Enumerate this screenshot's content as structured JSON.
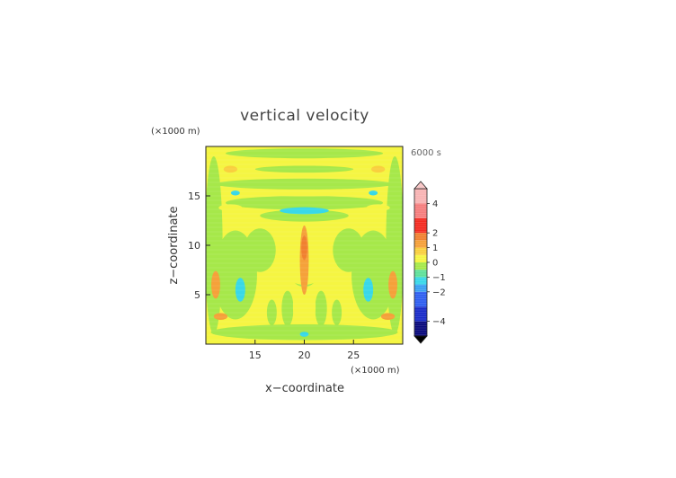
{
  "chart_data": {
    "type": "heatmap",
    "title": "vertical velocity",
    "xlabel": "x−coordinate",
    "ylabel": "z−coordinate",
    "x_unit": "(×1000 m)",
    "y_unit": "(×1000 m)",
    "time_label": "6000 s",
    "xlim": [
      10,
      30
    ],
    "ylim": [
      0,
      20
    ],
    "x_ticks": [
      15,
      20,
      25
    ],
    "y_ticks": [
      5,
      10,
      15
    ],
    "colorbar": {
      "range": [
        -5,
        5
      ],
      "tick_values": [
        4,
        2,
        1,
        0,
        -1,
        -2,
        -4
      ],
      "tick_labels": [
        "4",
        "2",
        "1",
        "0",
        "−1",
        "−2",
        "−4"
      ],
      "levels": [
        {
          "from": -5,
          "to": -4,
          "color": "#0a0a7c"
        },
        {
          "from": -4,
          "to": -3,
          "color": "#1a2cc8"
        },
        {
          "from": -3,
          "to": -2,
          "color": "#2f5ff0"
        },
        {
          "from": -2,
          "to": -1.5,
          "color": "#3aa0f2"
        },
        {
          "from": -1.5,
          "to": -1,
          "color": "#38d8e8"
        },
        {
          "from": -1,
          "to": -0.5,
          "color": "#5fe09a"
        },
        {
          "from": -0.5,
          "to": 0,
          "color": "#a6e84a"
        },
        {
          "from": 0,
          "to": 0.5,
          "color": "#f5f542"
        },
        {
          "from": 0.5,
          "to": 1,
          "color": "#f9cf3e"
        },
        {
          "from": 1,
          "to": 1.5,
          "color": "#f5a13a"
        },
        {
          "from": 1.5,
          "to": 2,
          "color": "#f08030"
        },
        {
          "from": 2,
          "to": 3,
          "color": "#f42c22"
        },
        {
          "from": 3,
          "to": 4,
          "color": "#f57e7e"
        },
        {
          "from": 4,
          "to": 5,
          "color": "#f8b4b4"
        }
      ],
      "over_color": "#f8c8c8",
      "under_color": "#000000"
    },
    "field_colors": {
      "neutral": "#f5f542",
      "weak_down": "#a6e84a",
      "down": "#38d8e8",
      "weak_up": "#f9cf3e",
      "up": "#f5a13a",
      "strong_up": "#f08030"
    },
    "features": [
      {
        "kind": "updraft_column",
        "x": 20,
        "z_range": [
          5,
          12
        ],
        "value": 1.5
      },
      {
        "kind": "updraft_core",
        "x": 20,
        "z_range": [
          8.5,
          11
        ],
        "value": 2
      },
      {
        "kind": "downdraft_band",
        "x_range": [
          17.5,
          22.5
        ],
        "z": 13.5,
        "value": -1.2
      },
      {
        "kind": "downdraft_spot",
        "x": 13.5,
        "z": 5.5,
        "value": -1.3
      },
      {
        "kind": "downdraft_spot",
        "x": 26.5,
        "z": 5.5,
        "value": -1.3
      },
      {
        "kind": "downdraft_spot",
        "x": 13,
        "z": 15.3,
        "value": -1
      },
      {
        "kind": "downdraft_spot",
        "x": 27,
        "z": 15.3,
        "value": -1
      },
      {
        "kind": "downdraft_spot",
        "x": 20,
        "z": 1,
        "value": -1
      },
      {
        "kind": "updraft_spot",
        "x": 11,
        "z": 6,
        "value": 1.2
      },
      {
        "kind": "updraft_spot",
        "x": 29,
        "z": 6,
        "value": 1.2
      },
      {
        "kind": "updraft_spot",
        "x": 11.5,
        "z": 2.8,
        "value": 1
      },
      {
        "kind": "updraft_spot",
        "x": 28.5,
        "z": 2.8,
        "value": 1
      },
      {
        "kind": "updraft_spot",
        "x": 12.5,
        "z": 17.7,
        "value": 0.8
      },
      {
        "kind": "updraft_spot",
        "x": 27.5,
        "z": 17.7,
        "value": 0.8
      }
    ]
  }
}
